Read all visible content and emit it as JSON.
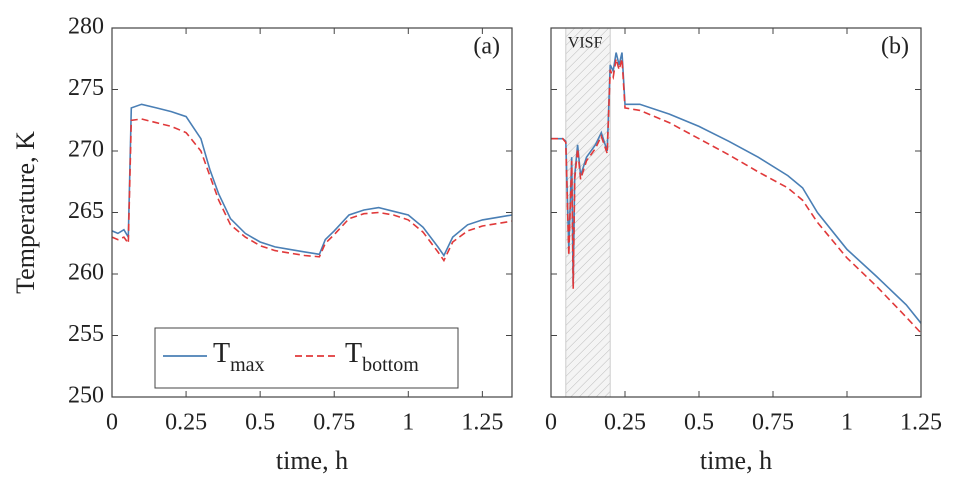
{
  "chart_data": [
    {
      "type": "line",
      "annotation": "(a)",
      "y_label": "Temperature, K",
      "x_label": "time, h",
      "x": [
        0,
        0.02,
        0.04,
        0.055,
        0.065,
        0.1,
        0.15,
        0.2,
        0.25,
        0.3,
        0.33,
        0.36,
        0.4,
        0.45,
        0.5,
        0.55,
        0.6,
        0.65,
        0.7,
        0.72,
        0.75,
        0.8,
        0.85,
        0.9,
        0.95,
        1.0,
        1.05,
        1.1,
        1.12,
        1.15,
        1.2,
        1.25,
        1.3,
        1.35
      ],
      "series": [
        {
          "name": "T",
          "name_sub": "max",
          "color": "#4a7fb5",
          "dash": false,
          "values": [
            263.5,
            263.3,
            263.6,
            263.0,
            273.5,
            273.8,
            273.5,
            273.2,
            272.8,
            271.0,
            268.5,
            266.5,
            264.5,
            263.3,
            262.6,
            262.2,
            262.0,
            261.8,
            261.6,
            262.8,
            263.5,
            264.8,
            265.2,
            265.4,
            265.1,
            264.8,
            263.8,
            262.2,
            261.5,
            263.0,
            264.0,
            264.4,
            264.6,
            264.8
          ]
        },
        {
          "name": "T",
          "name_sub": "bottom",
          "color": "#e0393a",
          "dash": true,
          "values": [
            263.0,
            262.8,
            263.0,
            262.5,
            272.5,
            272.6,
            272.3,
            272.0,
            271.5,
            270.0,
            268.0,
            266.0,
            264.0,
            263.0,
            262.3,
            261.9,
            261.7,
            261.5,
            261.4,
            262.5,
            263.2,
            264.5,
            264.9,
            265.0,
            264.8,
            264.4,
            263.4,
            261.8,
            261.1,
            262.6,
            263.5,
            263.9,
            264.1,
            264.3
          ]
        }
      ],
      "xlim": [
        0,
        1.35
      ],
      "xticks": [
        0,
        0.25,
        0.5,
        0.75,
        1,
        1.25
      ],
      "ylim": [
        250,
        280
      ],
      "yticks": [
        250,
        255,
        260,
        265,
        270,
        275,
        280
      ]
    },
    {
      "type": "line",
      "annotation": "(b)",
      "x_label": "time, h",
      "shade_label": "VISF",
      "shade": [
        0.05,
        0.2
      ],
      "x": [
        0,
        0.04,
        0.05,
        0.06,
        0.07,
        0.075,
        0.08,
        0.09,
        0.1,
        0.12,
        0.15,
        0.17,
        0.19,
        0.2,
        0.21,
        0.22,
        0.23,
        0.24,
        0.25,
        0.3,
        0.4,
        0.5,
        0.6,
        0.7,
        0.8,
        0.85,
        0.9,
        1.0,
        1.1,
        1.2,
        1.25
      ],
      "series": [
        {
          "color": "#4a7fb5",
          "dash": false,
          "values": [
            271.0,
            271.0,
            270.8,
            262.0,
            269.5,
            259.0,
            268.0,
            270.5,
            268.0,
            269.5,
            270.5,
            271.5,
            270.0,
            277.0,
            276.5,
            278.0,
            277.0,
            278.0,
            273.8,
            273.8,
            273.0,
            272.0,
            270.8,
            269.5,
            268.0,
            267.0,
            265.0,
            262.0,
            259.8,
            257.5,
            256.0
          ]
        },
        {
          "color": "#e0393a",
          "dash": true,
          "values": [
            271.0,
            271.0,
            270.7,
            261.5,
            269.2,
            258.8,
            267.7,
            270.2,
            267.7,
            269.2,
            270.2,
            271.2,
            269.8,
            276.6,
            276.0,
            277.5,
            276.6,
            277.5,
            273.5,
            273.3,
            272.3,
            271.0,
            269.7,
            268.3,
            267.0,
            266.0,
            264.2,
            261.3,
            259.0,
            256.5,
            255.2
          ]
        }
      ],
      "xlim": [
        0,
        1.25
      ],
      "xticks": [
        0,
        0.25,
        0.5,
        0.75,
        1,
        1.25
      ],
      "ylim": [
        250,
        280
      ]
    }
  ]
}
